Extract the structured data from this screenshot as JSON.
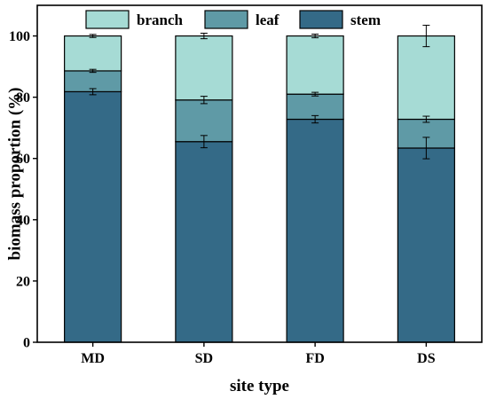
{
  "chart_data": {
    "type": "bar",
    "stacked": true,
    "categories": [
      "MD",
      "SD",
      "FD",
      "DS"
    ],
    "series": [
      {
        "name": "stem",
        "color": "#346a87",
        "values": [
          81.8,
          65.5,
          72.8,
          63.4
        ],
        "errors": [
          1.0,
          2.0,
          1.2,
          3.5
        ]
      },
      {
        "name": "leaf",
        "color": "#5f9aa6",
        "values": [
          6.8,
          13.6,
          8.2,
          9.4
        ],
        "errors": [
          0.5,
          1.2,
          0.6,
          1.0
        ]
      },
      {
        "name": "branch",
        "color": "#a6dbd5",
        "values": [
          11.4,
          20.9,
          19.0,
          27.2
        ],
        "errors": [
          0.5,
          0.9,
          0.6,
          3.5
        ]
      }
    ],
    "xlabel": "site type",
    "ylabel": "biomass proportion (%)",
    "ylim": [
      0,
      110
    ],
    "yticks": [
      0,
      20,
      40,
      60,
      80,
      100
    ],
    "grid": false,
    "legend_position": "top",
    "legend_order": [
      "branch",
      "leaf",
      "stem"
    ]
  }
}
